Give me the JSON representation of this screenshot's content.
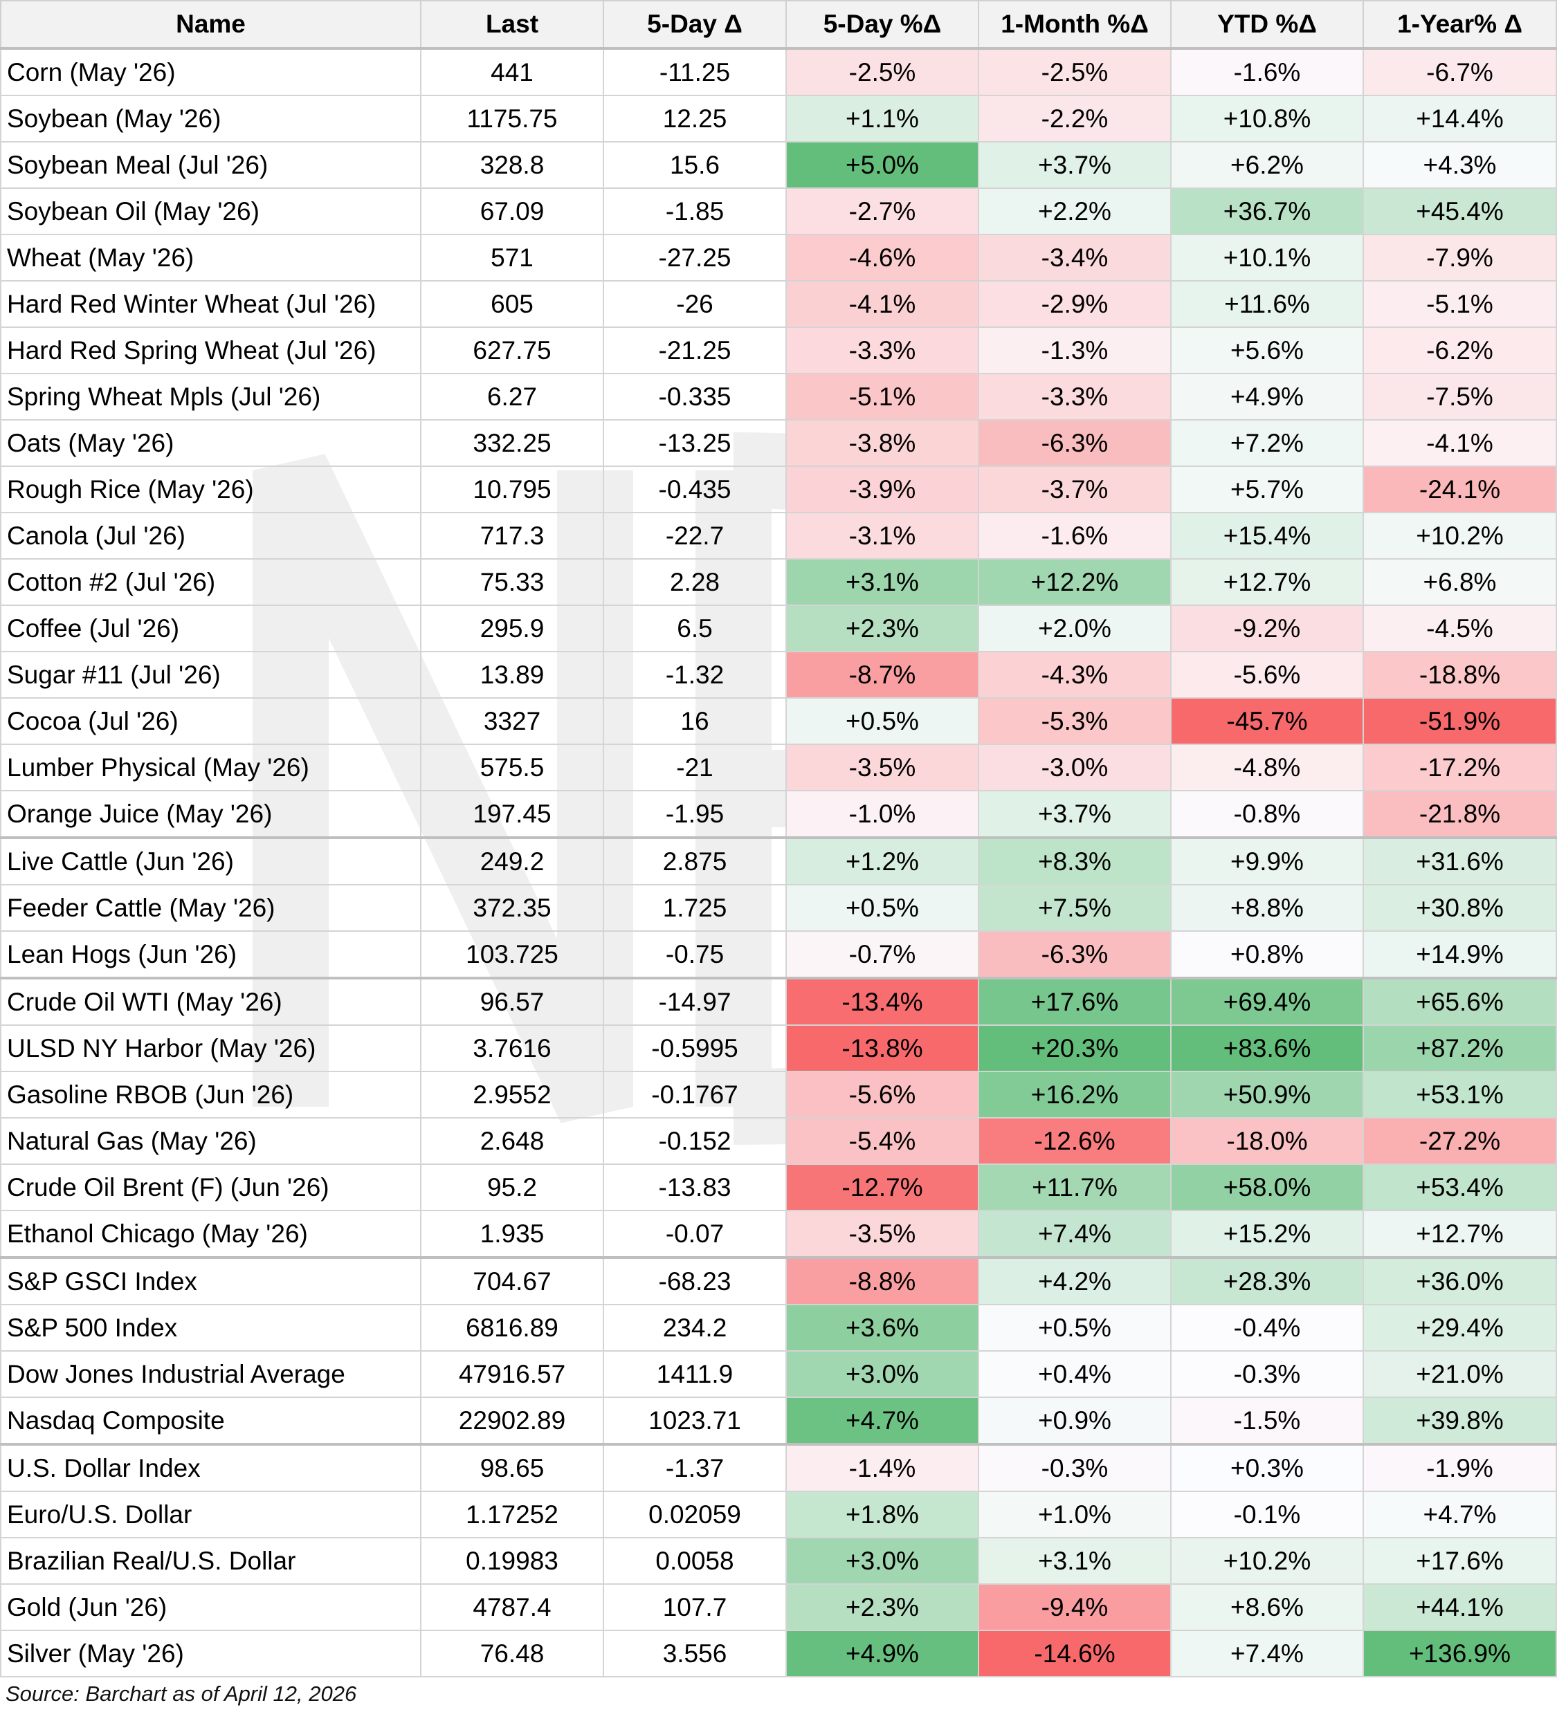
{
  "table": {
    "headers": [
      "Name",
      "Last",
      "5-Day Δ",
      "5-Day %Δ",
      "1-Month %Δ",
      "YTD %Δ",
      "1-Year% Δ"
    ],
    "group_breaks_before": [
      17,
      20,
      26,
      30
    ],
    "rows": [
      [
        "Corn (May '26)",
        "441",
        "-11.25",
        "-2.5%",
        "-2.5%",
        "-1.6%",
        "-6.7%"
      ],
      [
        "Soybean (May '26)",
        "1175.75",
        "12.25",
        "+1.1%",
        "-2.2%",
        "+10.8%",
        "+14.4%"
      ],
      [
        "Soybean Meal (Jul '26)",
        "328.8",
        "15.6",
        "+5.0%",
        "+3.7%",
        "+6.2%",
        "+4.3%"
      ],
      [
        "Soybean Oil (May '26)",
        "67.09",
        "-1.85",
        "-2.7%",
        "+2.2%",
        "+36.7%",
        "+45.4%"
      ],
      [
        "Wheat (May '26)",
        "571",
        "-27.25",
        "-4.6%",
        "-3.4%",
        "+10.1%",
        "-7.9%"
      ],
      [
        "Hard Red Winter Wheat (Jul '26)",
        "605",
        "-26",
        "-4.1%",
        "-2.9%",
        "+11.6%",
        "-5.1%"
      ],
      [
        "Hard Red Spring Wheat (Jul '26)",
        "627.75",
        "-21.25",
        "-3.3%",
        "-1.3%",
        "+5.6%",
        "-6.2%"
      ],
      [
        "Spring Wheat Mpls (Jul '26)",
        "6.27",
        "-0.335",
        "-5.1%",
        "-3.3%",
        "+4.9%",
        "-7.5%"
      ],
      [
        "Oats (May '26)",
        "332.25",
        "-13.25",
        "-3.8%",
        "-6.3%",
        "+7.2%",
        "-4.1%"
      ],
      [
        "Rough Rice (May '26)",
        "10.795",
        "-0.435",
        "-3.9%",
        "-3.7%",
        "+5.7%",
        "-24.1%"
      ],
      [
        "Canola (Jul '26)",
        "717.3",
        "-22.7",
        "-3.1%",
        "-1.6%",
        "+15.4%",
        "+10.2%"
      ],
      [
        "Cotton #2 (Jul '26)",
        "75.33",
        "2.28",
        "+3.1%",
        "+12.2%",
        "+12.7%",
        "+6.8%"
      ],
      [
        "Coffee (Jul '26)",
        "295.9",
        "6.5",
        "+2.3%",
        "+2.0%",
        "-9.2%",
        "-4.5%"
      ],
      [
        "Sugar #11 (Jul '26)",
        "13.89",
        "-1.32",
        "-8.7%",
        "-4.3%",
        "-5.6%",
        "-18.8%"
      ],
      [
        "Cocoa (Jul '26)",
        "3327",
        "16",
        "+0.5%",
        "-5.3%",
        "-45.7%",
        "-51.9%"
      ],
      [
        "Lumber Physical (May '26)",
        "575.5",
        "-21",
        "-3.5%",
        "-3.0%",
        "-4.8%",
        "-17.2%"
      ],
      [
        "Orange Juice (May '26)",
        "197.45",
        "-1.95",
        "-1.0%",
        "+3.7%",
        "-0.8%",
        "-21.8%"
      ],
      [
        "Live Cattle (Jun '26)",
        "249.2",
        "2.875",
        "+1.2%",
        "+8.3%",
        "+9.9%",
        "+31.6%"
      ],
      [
        "Feeder Cattle (May '26)",
        "372.35",
        "1.725",
        "+0.5%",
        "+7.5%",
        "+8.8%",
        "+30.8%"
      ],
      [
        "Lean Hogs (Jun '26)",
        "103.725",
        "-0.75",
        "-0.7%",
        "-6.3%",
        "+0.8%",
        "+14.9%"
      ],
      [
        "Crude Oil WTI (May '26)",
        "96.57",
        "-14.97",
        "-13.4%",
        "+17.6%",
        "+69.4%",
        "+65.6%"
      ],
      [
        "ULSD NY Harbor (May '26)",
        "3.7616",
        "-0.5995",
        "-13.8%",
        "+20.3%",
        "+83.6%",
        "+87.2%"
      ],
      [
        "Gasoline RBOB (Jun '26)",
        "2.9552",
        "-0.1767",
        "-5.6%",
        "+16.2%",
        "+50.9%",
        "+53.1%"
      ],
      [
        "Natural Gas (May '26)",
        "2.648",
        "-0.152",
        "-5.4%",
        "-12.6%",
        "-18.0%",
        "-27.2%"
      ],
      [
        "Crude Oil Brent (F) (Jun '26)",
        "95.2",
        "-13.83",
        "-12.7%",
        "+11.7%",
        "+58.0%",
        "+53.4%"
      ],
      [
        "Ethanol Chicago (May '26)",
        "1.935",
        "-0.07",
        "-3.5%",
        "+7.4%",
        "+15.2%",
        "+12.7%"
      ],
      [
        "S&P GSCI Index",
        "704.67",
        "-68.23",
        "-8.8%",
        "+4.2%",
        "+28.3%",
        "+36.0%"
      ],
      [
        "S&P 500 Index",
        "6816.89",
        "234.2",
        "+3.6%",
        "+0.5%",
        "-0.4%",
        "+29.4%"
      ],
      [
        "Dow Jones Industrial Average",
        "47916.57",
        "1411.9",
        "+3.0%",
        "+0.4%",
        "-0.3%",
        "+21.0%"
      ],
      [
        "Nasdaq Composite",
        "22902.89",
        "1023.71",
        "+4.7%",
        "+0.9%",
        "-1.5%",
        "+39.8%"
      ],
      [
        "U.S. Dollar Index",
        "98.65",
        "-1.37",
        "-1.4%",
        "-0.3%",
        "+0.3%",
        "-1.9%"
      ],
      [
        "Euro/U.S. Dollar",
        "1.17252",
        "0.02059",
        "+1.8%",
        "+1.0%",
        "-0.1%",
        "+4.7%"
      ],
      [
        "Brazilian Real/U.S. Dollar",
        "0.19983",
        "0.0058",
        "+3.0%",
        "+3.1%",
        "+10.2%",
        "+17.6%"
      ],
      [
        "Gold (Jun '26)",
        "4787.4",
        "107.7",
        "+2.3%",
        "-9.4%",
        "+8.6%",
        "+44.1%"
      ],
      [
        "Silver (May '26)",
        "76.48",
        "3.556",
        "+4.9%",
        "-14.6%",
        "+7.4%",
        "+136.9%"
      ]
    ]
  },
  "source": "Source: Barchart as of April 12, 2026",
  "colors": {
    "positive": "#63be7b",
    "negative": "#f8696b",
    "neutral": "#fcfcff",
    "header_bg": "#f2f2f2"
  }
}
